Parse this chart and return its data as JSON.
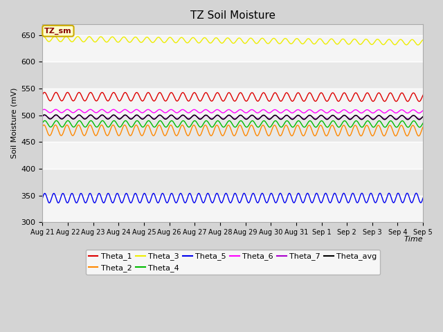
{
  "title": "TZ Soil Moisture",
  "ylabel": "Soil Moisture (mV)",
  "xlabel": "Time",
  "ylim": [
    300,
    670
  ],
  "bg_color": "#e8e8e8",
  "stripe_color": "#f5f5f5",
  "fig_bg": "#d4d4d4",
  "series": [
    {
      "name": "Theta_1",
      "color": "#dd0000",
      "base": 535,
      "amp": 8,
      "freq": 2.2,
      "phase": 0.5,
      "trend": -0.003
    },
    {
      "name": "Theta_2",
      "color": "#ff8800",
      "base": 472,
      "amp": 10,
      "freq": 2.2,
      "phase": 0.8,
      "trend": -0.002
    },
    {
      "name": "Theta_3",
      "color": "#eeee00",
      "base": 643,
      "amp": 5,
      "freq": 2.2,
      "phase": 1.2,
      "trend": -0.018
    },
    {
      "name": "Theta_4",
      "color": "#00bb00",
      "base": 484,
      "amp": 6,
      "freq": 2.2,
      "phase": 0.3,
      "trend": -0.001
    },
    {
      "name": "Theta_5",
      "color": "#0000ee",
      "base": 345,
      "amp": 9,
      "freq": 2.8,
      "phase": 0.0,
      "trend": 0.001
    },
    {
      "name": "Theta_6",
      "color": "#ff00ff",
      "base": 508,
      "amp": 3,
      "freq": 2.2,
      "phase": 0.6,
      "trend": -0.002
    },
    {
      "name": "Theta_7",
      "color": "#aa00cc",
      "base": 497,
      "amp": 3,
      "freq": 2.2,
      "phase": 0.4,
      "trend": -0.002
    },
    {
      "name": "Theta_avg",
      "color": "#000000",
      "base": 497,
      "amp": 4,
      "freq": 2.2,
      "phase": 0.5,
      "trend": -0.003
    }
  ],
  "x_tick_labels": [
    "Aug 21",
    "Aug 22",
    "Aug 23",
    "Aug 24",
    "Aug 25",
    "Aug 26",
    "Aug 27",
    "Aug 28",
    "Aug 29",
    "Aug 30",
    "Aug 31",
    "Sep 1",
    "Sep 2",
    "Sep 3",
    "Sep 4",
    "Sep 5"
  ],
  "legend_label": "TZ_sm",
  "legend_bg": "#ffffcc",
  "legend_border": "#ccaa00",
  "legend_text_color": "#880000"
}
